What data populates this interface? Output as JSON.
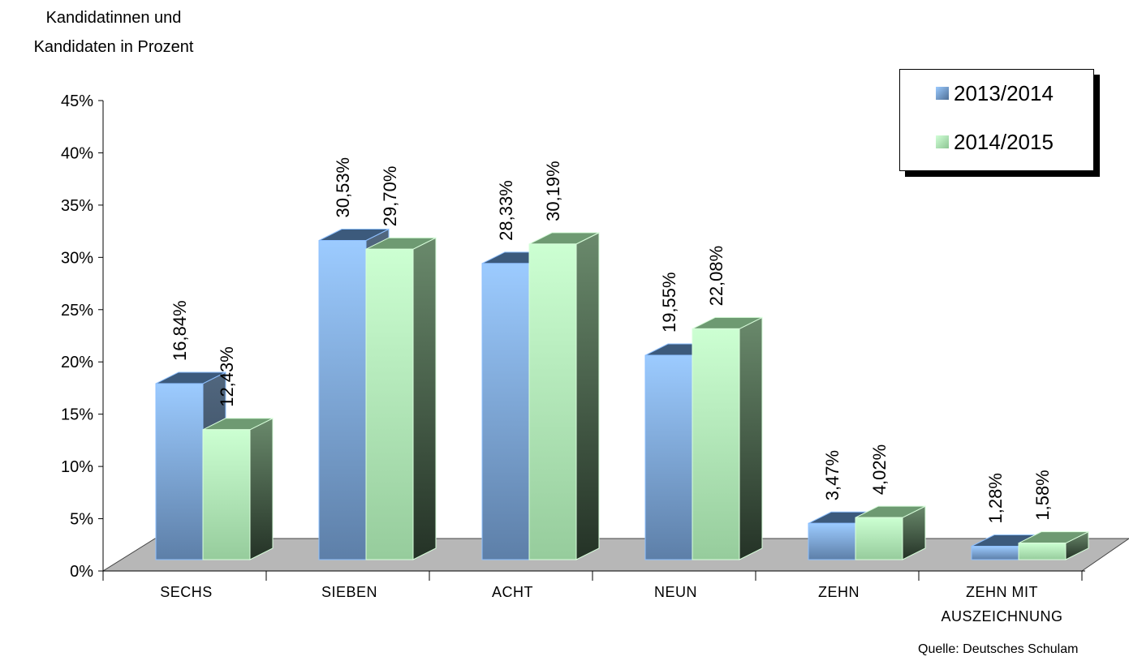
{
  "chart_data": {
    "type": "bar",
    "ylabel_lines": [
      "Kandidatinnen und",
      "Kandidaten in Prozent"
    ],
    "categories": [
      [
        "SECHS"
      ],
      [
        "SIEBEN"
      ],
      [
        "ACHT"
      ],
      [
        "NEUN"
      ],
      [
        "ZEHN"
      ],
      [
        "ZEHN MIT",
        "AUSZEICHNUNG"
      ]
    ],
    "series": [
      {
        "name": "2013/2014",
        "values": [
          16.84,
          30.53,
          28.33,
          19.55,
          3.47,
          1.28
        ],
        "labels": [
          "16,84%",
          "30,53%",
          "28,33%",
          "19,55%",
          "3,47%",
          "1,28%"
        ]
      },
      {
        "name": "2014/2015",
        "values": [
          12.43,
          29.7,
          30.19,
          22.08,
          4.02,
          1.58
        ],
        "labels": [
          "12,43%",
          "29,70%",
          "30,19%",
          "22,08%",
          "4,02%",
          "1,58%"
        ]
      }
    ],
    "yticks": [
      "0%",
      "5%",
      "10%",
      "15%",
      "20%",
      "25%",
      "30%",
      "35%",
      "40%",
      "45%"
    ],
    "ylim": [
      0,
      45
    ],
    "legend_position": "top-right",
    "grid": false,
    "source": "Quelle: Deutsches Schulam"
  },
  "colors": {
    "series1": "#7fb0e6",
    "series2": "#b8ecbd",
    "floor": "#b7b7b7"
  }
}
